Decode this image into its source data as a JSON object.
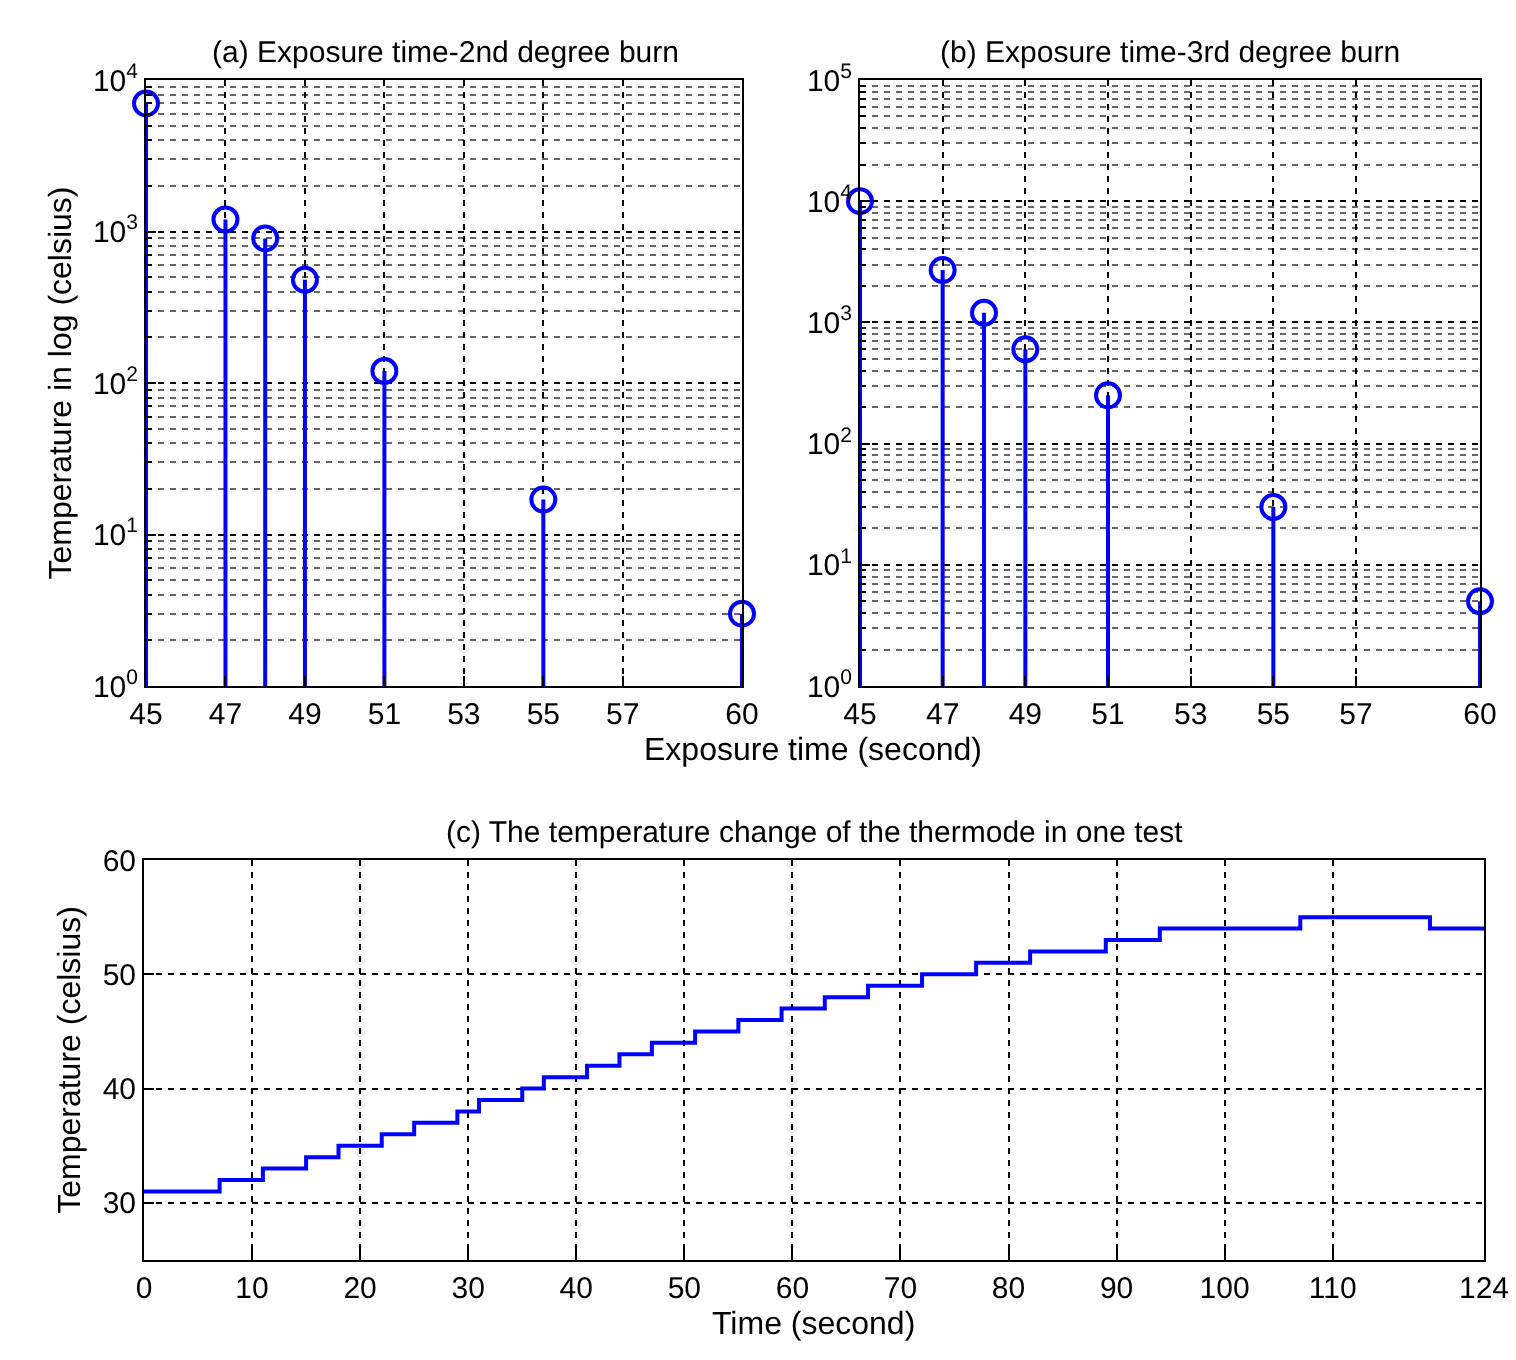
{
  "chart_data": [
    {
      "type": "lollipop",
      "title": "(a) Exposure time-2nd degree burn",
      "xlabel": "Exposure time (second)",
      "ylabel": "Temperature in log (celsius)",
      "x": [
        45,
        47,
        48,
        49,
        51,
        55,
        60
      ],
      "values": [
        7000,
        1200,
        900,
        480,
        120,
        17,
        3
      ],
      "color": "#0000ff",
      "xlim": [
        45,
        60
      ],
      "xticks": [
        45,
        47,
        49,
        51,
        53,
        55,
        57,
        60
      ],
      "ylim": [
        1,
        10000
      ],
      "yticks": [
        {
          "value": 1,
          "label": "10$^{0}$"
        },
        {
          "value": 10,
          "label": "10$^{1}$"
        },
        {
          "value": 100,
          "label": "10$^{2}$"
        },
        {
          "value": 1000,
          "label": "10$^{3}$"
        },
        {
          "value": 10000,
          "label": "10$^{4}$"
        }
      ],
      "log": true,
      "grid": true,
      "marker": "circle"
    },
    {
      "type": "lollipop",
      "title": "(b) Exposure time-3rd degree burn",
      "x": [
        45,
        47,
        48,
        49,
        51,
        55,
        60
      ],
      "values": [
        10000,
        2700,
        1200,
        600,
        250,
        30,
        5
      ],
      "color": "#0000ff",
      "xlim": [
        45,
        60
      ],
      "xticks": [
        45,
        47,
        49,
        51,
        53,
        55,
        57,
        60
      ],
      "ylim": [
        1,
        100000
      ],
      "yticks": [
        {
          "value": 1,
          "label": "10$^{0}$"
        },
        {
          "value": 10,
          "label": "10$^{1}$"
        },
        {
          "value": 100,
          "label": "10$^{2}$"
        },
        {
          "value": 1000,
          "label": "10$^{3}$"
        },
        {
          "value": 10000,
          "label": "10$^{4}$"
        },
        {
          "value": 100000,
          "label": "10$^{5}$"
        }
      ],
      "log": true,
      "grid": true,
      "marker": "circle"
    },
    {
      "type": "step",
      "title": "(c) The temperature change of the thermode in one test",
      "xlabel": "Time (second)",
      "ylabel": "Temperature (celsius)",
      "x": [
        0,
        7,
        11,
        15,
        18,
        22,
        25,
        29,
        31,
        35,
        37,
        41,
        44,
        47,
        51,
        55,
        59,
        63,
        67,
        72,
        77,
        82,
        89,
        94,
        107,
        119,
        124
      ],
      "values": [
        31,
        32,
        33,
        34,
        35,
        36,
        37,
        38,
        39,
        40,
        41,
        42,
        43,
        44,
        45,
        46,
        47,
        48,
        49,
        50,
        51,
        52,
        53,
        54,
        55,
        54,
        54
      ],
      "color": "#0000ff",
      "xlim": [
        0,
        124
      ],
      "xticks": [
        0,
        10,
        20,
        30,
        40,
        50,
        60,
        70,
        80,
        90,
        100,
        110,
        124
      ],
      "ylim": [
        25,
        60
      ],
      "yticks": [
        30,
        40,
        50,
        60
      ],
      "grid": true
    }
  ]
}
